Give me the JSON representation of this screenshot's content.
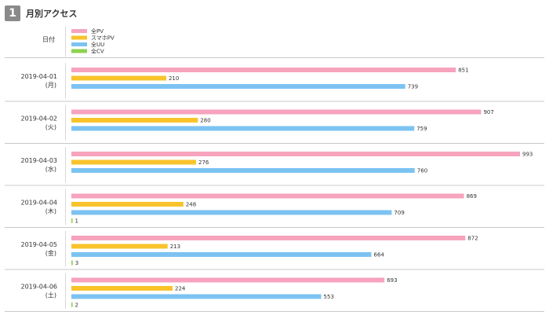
{
  "section": {
    "number": "1",
    "title": "月別アクセス"
  },
  "table": {
    "header_label": "日付"
  },
  "chart_data": {
    "type": "bar",
    "orientation": "horizontal",
    "title": "月別アクセス",
    "legend_placement": "top-left",
    "grid": false,
    "categories": [
      {
        "date": "2019-04-01",
        "weekday": "(月)"
      },
      {
        "date": "2019-04-02",
        "weekday": "(火)"
      },
      {
        "date": "2019-04-03",
        "weekday": "(水)"
      },
      {
        "date": "2019-04-04",
        "weekday": "(木)"
      },
      {
        "date": "2019-04-05",
        "weekday": "(金)"
      },
      {
        "date": "2019-04-06",
        "weekday": "(土)"
      }
    ],
    "series": [
      {
        "name": "全PV",
        "color": "#f7a3bd",
        "values": [
          851,
          907,
          993,
          869,
          872,
          693
        ]
      },
      {
        "name": "スマホPV",
        "color": "#f9c32c",
        "values": [
          210,
          280,
          276,
          248,
          213,
          224
        ]
      },
      {
        "name": "全UU",
        "color": "#7cc3f2",
        "values": [
          739,
          759,
          760,
          709,
          664,
          553
        ]
      },
      {
        "name": "全CV",
        "color": "#8fd14f",
        "values": [
          null,
          null,
          null,
          1,
          3,
          2
        ]
      }
    ],
    "xlim": [
      0,
      993
    ]
  }
}
